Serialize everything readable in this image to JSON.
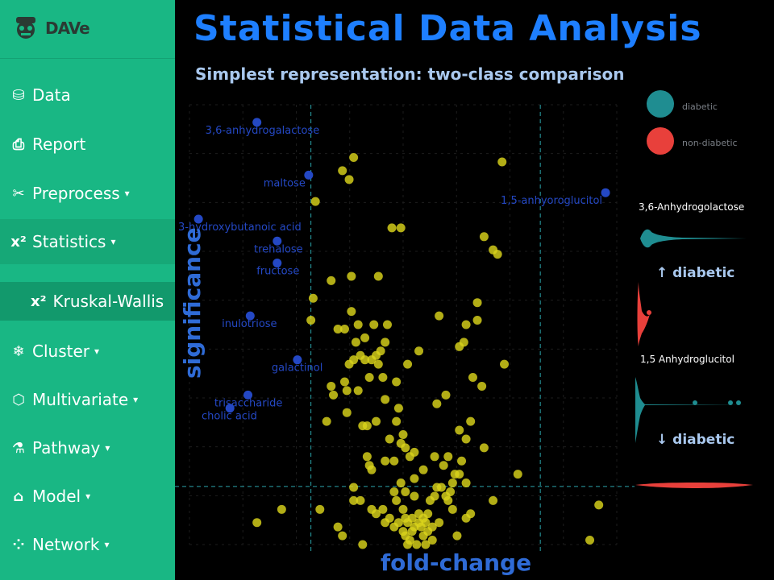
{
  "app": {
    "logo_text": "DAVe"
  },
  "sidebar": {
    "items": [
      {
        "label": "Data",
        "icon": "database-icon",
        "glyph": "⛁"
      },
      {
        "label": "Report",
        "icon": "document-icon",
        "glyph": "⎙"
      },
      {
        "label": "Preprocess",
        "icon": "scissors-icon",
        "glyph": "✂"
      },
      {
        "label": "Statistics",
        "icon": "chi-square-icon",
        "glyph": "x²"
      },
      {
        "label": "Cluster",
        "icon": "snowflake-icon",
        "glyph": "❄"
      },
      {
        "label": "Multivariate",
        "icon": "cube-icon",
        "glyph": "⬡"
      },
      {
        "label": "Pathway",
        "icon": "flask-icon",
        "glyph": "⚗"
      },
      {
        "label": "Model",
        "icon": "institution-icon",
        "glyph": "⌂"
      },
      {
        "label": "Network",
        "icon": "share-icon",
        "glyph": "⁘"
      }
    ],
    "sub_item": {
      "label": "Kruskal-Wallis",
      "glyph": "x²"
    }
  },
  "main": {
    "title": "Statistical Data Analysis",
    "subtitle": "Simplest representation: two-class comparison",
    "ylabel": "significance",
    "xlabel": "fold-change"
  },
  "legend": {
    "items": [
      {
        "label": "diabetic",
        "color": "#1f8d91"
      },
      {
        "label": "non-diabetic",
        "color": "#e8403b"
      }
    ]
  },
  "violins": {
    "gene1": "3,6-Anhydrogolactose",
    "gene1_arrow": "↑ diabetic",
    "gene2": "1,5 Anhydroglucitol",
    "gene2_arrow": "↓ diabetic"
  },
  "colors": {
    "highlight": "#2448c4",
    "points": "#d9d31b",
    "threshold": "#2aa3a9",
    "title": "#1e7fff"
  },
  "chart_data": {
    "type": "scatter",
    "xlabel": "fold-change",
    "ylabel": "significance",
    "labeled_points": [
      {
        "label": "3,6-anhydrogalactose",
        "x": 0.3,
        "y": 0.96
      },
      {
        "label": "maltose",
        "x": 0.53,
        "y": 0.84
      },
      {
        "label": "1,5-anhyoroglucitol",
        "x": 1.85,
        "y": 0.8
      },
      {
        "label": "3-hydroxybutanoic acid",
        "x": 0.04,
        "y": 0.74
      },
      {
        "label": "trehalose",
        "x": 0.39,
        "y": 0.69
      },
      {
        "label": "fructose",
        "x": 0.39,
        "y": 0.64
      },
      {
        "label": "inulotriose",
        "x": 0.27,
        "y": 0.52
      },
      {
        "label": "galactinol",
        "x": 0.48,
        "y": 0.42
      },
      {
        "label": "trisaccharide",
        "x": 0.26,
        "y": 0.34
      },
      {
        "label": "cholic acid",
        "x": 0.18,
        "y": 0.31
      }
    ],
    "points": [
      [
        0.73,
        0.88
      ],
      [
        0.68,
        0.85
      ],
      [
        0.71,
        0.83
      ],
      [
        0.56,
        0.78
      ],
      [
        1.39,
        0.87
      ],
      [
        0.9,
        0.72
      ],
      [
        0.94,
        0.72
      ],
      [
        1.31,
        0.7
      ],
      [
        1.35,
        0.67
      ],
      [
        1.37,
        0.66
      ],
      [
        0.63,
        0.6
      ],
      [
        0.72,
        0.61
      ],
      [
        0.84,
        0.61
      ],
      [
        0.54,
        0.51
      ],
      [
        0.66,
        0.49
      ],
      [
        0.75,
        0.5
      ],
      [
        0.87,
        0.46
      ],
      [
        0.88,
        0.5
      ],
      [
        0.78,
        0.47
      ],
      [
        1.28,
        0.55
      ],
      [
        1.28,
        0.51
      ],
      [
        1.11,
        0.52
      ],
      [
        0.76,
        0.43
      ],
      [
        0.78,
        0.42
      ],
      [
        0.81,
        0.42
      ],
      [
        0.83,
        0.43
      ],
      [
        0.85,
        0.44
      ],
      [
        0.84,
        0.41
      ],
      [
        0.86,
        0.38
      ],
      [
        0.8,
        0.38
      ],
      [
        0.71,
        0.41
      ],
      [
        0.73,
        0.42
      ],
      [
        0.69,
        0.37
      ],
      [
        0.75,
        0.35
      ],
      [
        0.92,
        0.37
      ],
      [
        0.87,
        0.33
      ],
      [
        0.93,
        0.31
      ],
      [
        0.64,
        0.34
      ],
      [
        0.7,
        0.35
      ],
      [
        0.97,
        0.41
      ],
      [
        1.26,
        0.38
      ],
      [
        1.4,
        0.41
      ],
      [
        1.3,
        0.36
      ],
      [
        1.14,
        0.34
      ],
      [
        1.1,
        0.32
      ],
      [
        1.25,
        0.28
      ],
      [
        1.31,
        0.22
      ],
      [
        1.23,
        0.24
      ],
      [
        0.61,
        0.28
      ],
      [
        0.83,
        0.28
      ],
      [
        0.79,
        0.27
      ],
      [
        0.77,
        0.27
      ],
      [
        0.95,
        0.25
      ],
      [
        0.89,
        0.24
      ],
      [
        0.94,
        0.23
      ],
      [
        0.96,
        0.22
      ],
      [
        0.98,
        0.2
      ],
      [
        1.0,
        0.21
      ],
      [
        0.91,
        0.19
      ],
      [
        0.87,
        0.19
      ],
      [
        0.81,
        0.17
      ],
      [
        0.8,
        0.18
      ],
      [
        0.79,
        0.2
      ],
      [
        1.15,
        0.2
      ],
      [
        1.21,
        0.19
      ],
      [
        1.13,
        0.18
      ],
      [
        1.18,
        0.16
      ],
      [
        1.2,
        0.16
      ],
      [
        1.23,
        0.14
      ],
      [
        1.17,
        0.14
      ],
      [
        1.12,
        0.13
      ],
      [
        1.1,
        0.13
      ],
      [
        1.14,
        0.11
      ],
      [
        1.04,
        0.17
      ],
      [
        1.0,
        0.15
      ],
      [
        0.94,
        0.14
      ],
      [
        0.91,
        0.12
      ],
      [
        0.96,
        0.12
      ],
      [
        0.73,
        0.13
      ],
      [
        1.0,
        0.11
      ],
      [
        1.09,
        0.11
      ],
      [
        1.07,
        0.1
      ],
      [
        1.06,
        0.07
      ],
      [
        1.23,
        0.06
      ],
      [
        1.17,
        0.08
      ],
      [
        1.35,
        0.1
      ],
      [
        0.86,
        0.08
      ],
      [
        0.92,
        0.1
      ],
      [
        0.95,
        0.08
      ],
      [
        0.99,
        0.06
      ],
      [
        1.02,
        0.05
      ],
      [
        1.03,
        0.04
      ],
      [
        1.05,
        0.05
      ],
      [
        1.0,
        0.04
      ],
      [
        0.99,
        0.03
      ],
      [
        0.96,
        0.02
      ],
      [
        0.97,
        0.0
      ],
      [
        1.01,
        0.0
      ],
      [
        1.04,
        0.02
      ],
      [
        1.06,
        0.03
      ],
      [
        1.08,
        0.04
      ],
      [
        1.02,
        0.07
      ],
      [
        0.97,
        0.05
      ],
      [
        1.05,
        0.0
      ],
      [
        1.08,
        0.01
      ],
      [
        1.04,
        0.06
      ],
      [
        0.96,
        0.06
      ],
      [
        0.93,
        0.05
      ],
      [
        0.95,
        0.03
      ],
      [
        0.98,
        0.01
      ],
      [
        0.58,
        0.08
      ],
      [
        0.3,
        0.05
      ],
      [
        0.41,
        0.08
      ],
      [
        0.73,
        0.1
      ],
      [
        0.76,
        0.1
      ],
      [
        0.77,
        0.0
      ],
      [
        0.81,
        0.08
      ],
      [
        0.83,
        0.07
      ],
      [
        0.87,
        0.05
      ],
      [
        0.89,
        0.06
      ],
      [
        0.91,
        0.04
      ],
      [
        1.15,
        0.1
      ],
      [
        1.11,
        0.05
      ],
      [
        1.19,
        0.02
      ],
      [
        1.25,
        0.07
      ],
      [
        0.66,
        0.04
      ],
      [
        0.68,
        0.02
      ],
      [
        1.46,
        0.16
      ],
      [
        1.82,
        0.09
      ],
      [
        1.78,
        0.01
      ],
      [
        1.2,
        0.45
      ],
      [
        1.22,
        0.46
      ],
      [
        1.23,
        0.5
      ],
      [
        0.55,
        0.56
      ],
      [
        0.82,
        0.5
      ],
      [
        1.02,
        0.44
      ],
      [
        0.72,
        0.53
      ],
      [
        0.69,
        0.49
      ],
      [
        0.74,
        0.46
      ],
      [
        0.7,
        0.3
      ],
      [
        0.63,
        0.36
      ],
      [
        0.92,
        0.28
      ],
      [
        1.09,
        0.2
      ],
      [
        1.16,
        0.12
      ],
      [
        1.2,
        0.26
      ]
    ],
    "threshold_lines": {
      "x": [
        0.54,
        1.56
      ],
      "y": 0.132
    },
    "xlim": [
      0,
      1.9
    ],
    "ylim": [
      0,
      1
    ]
  }
}
